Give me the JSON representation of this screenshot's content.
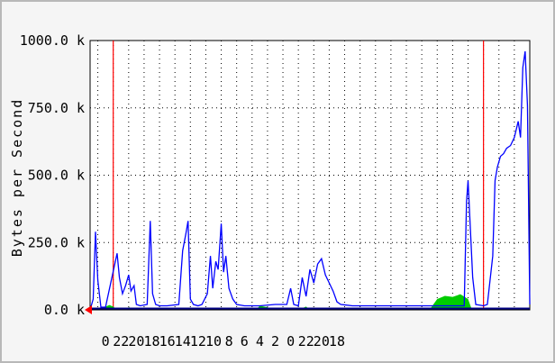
{
  "chart_data": {
    "type": "line",
    "title": "",
    "xlabel": "",
    "ylabel": "Bytes per Second",
    "ylim": [
      0,
      1000
    ],
    "y_ticks": [
      "0.0 k",
      "250.0 k",
      "500.0 k",
      "750.0 k",
      "1000.0 k"
    ],
    "y_tick_values": [
      0,
      250,
      500,
      750,
      1000
    ],
    "x_ticks": [
      "0",
      "22",
      "20",
      "18",
      "16",
      "14",
      "12",
      "10",
      "8",
      "6",
      "4",
      "2",
      "0",
      "22",
      "20",
      "18"
    ],
    "x_range": [
      -1,
      56
    ],
    "x_tick_positions": [
      2,
      6,
      10,
      14,
      18,
      22,
      26,
      30,
      34,
      38,
      42,
      46,
      50,
      54,
      58,
      62
    ],
    "day_markers": [
      2,
      50
    ],
    "grid": true,
    "colors": {
      "series_in": "#00cc00",
      "series_out": "#0000ff",
      "axis": "#000000",
      "day_marker": "#ff0000",
      "arrow": "#ff0000"
    },
    "series": [
      {
        "values": [
          [
            -1,
            0
          ],
          [
            1,
            0
          ],
          [
            1,
            12
          ],
          [
            1.5,
            18
          ],
          [
            2,
            12
          ],
          [
            2.5,
            0
          ],
          [
            4,
            0
          ],
          [
            4,
            10
          ],
          [
            5,
            0
          ],
          [
            20.5,
            0
          ],
          [
            21,
            15
          ],
          [
            22,
            10
          ],
          [
            22.5,
            0
          ],
          [
            26,
            0
          ],
          [
            27,
            12
          ],
          [
            27.5,
            0
          ],
          [
            43,
            0
          ],
          [
            44,
            40
          ],
          [
            45,
            52
          ],
          [
            46,
            48
          ],
          [
            47,
            58
          ],
          [
            48,
            40
          ],
          [
            48.5,
            0
          ],
          [
            56,
            0
          ]
        ]
      },
      {
        "values": [
          [
            -1,
            0
          ],
          [
            -0.6,
            40
          ],
          [
            -0.3,
            290
          ],
          [
            0,
            110
          ],
          [
            0.4,
            10
          ],
          [
            1,
            10
          ],
          [
            2.2,
            170
          ],
          [
            2.5,
            210
          ],
          [
            2.8,
            120
          ],
          [
            3.2,
            60
          ],
          [
            3.6,
            90
          ],
          [
            4,
            130
          ],
          [
            4.3,
            70
          ],
          [
            4.7,
            90
          ],
          [
            5,
            20
          ],
          [
            5.5,
            15
          ],
          [
            6.4,
            20
          ],
          [
            6.8,
            330
          ],
          [
            7.1,
            60
          ],
          [
            7.5,
            20
          ],
          [
            8,
            15
          ],
          [
            9,
            15
          ],
          [
            10.5,
            20
          ],
          [
            11,
            220
          ],
          [
            11.4,
            280
          ],
          [
            11.7,
            330
          ],
          [
            12,
            40
          ],
          [
            12.4,
            20
          ],
          [
            13,
            15
          ],
          [
            13.5,
            20
          ],
          [
            14.2,
            60
          ],
          [
            14.6,
            200
          ],
          [
            14.9,
            80
          ],
          [
            15.3,
            180
          ],
          [
            15.6,
            150
          ],
          [
            16,
            320
          ],
          [
            16.3,
            140
          ],
          [
            16.6,
            200
          ],
          [
            17,
            80
          ],
          [
            17.5,
            40
          ],
          [
            18,
            20
          ],
          [
            19,
            15
          ],
          [
            21,
            15
          ],
          [
            23,
            20
          ],
          [
            24.5,
            20
          ],
          [
            25,
            80
          ],
          [
            25.4,
            20
          ],
          [
            26,
            15
          ],
          [
            26.5,
            120
          ],
          [
            27,
            50
          ],
          [
            27.5,
            150
          ],
          [
            28,
            100
          ],
          [
            28.5,
            170
          ],
          [
            29,
            190
          ],
          [
            29.5,
            130
          ],
          [
            30,
            100
          ],
          [
            30.5,
            70
          ],
          [
            31,
            30
          ],
          [
            31.5,
            20
          ],
          [
            33,
            15
          ],
          [
            40,
            15
          ],
          [
            45,
            15
          ],
          [
            47.5,
            15
          ],
          [
            47.8,
            400
          ],
          [
            48,
            480
          ],
          [
            48.3,
            300
          ],
          [
            48.6,
            120
          ],
          [
            49,
            20
          ],
          [
            50,
            15
          ],
          [
            50.5,
            20
          ],
          [
            51.2,
            200
          ],
          [
            51.5,
            480
          ],
          [
            51.8,
            530
          ],
          [
            52.2,
            570
          ],
          [
            52.6,
            580
          ],
          [
            53,
            600
          ],
          [
            53.5,
            610
          ],
          [
            54,
            640
          ],
          [
            54.5,
            700
          ],
          [
            54.8,
            640
          ],
          [
            55.1,
            900
          ],
          [
            55.4,
            960
          ],
          [
            55.7,
            760
          ],
          [
            56,
            20
          ]
        ]
      }
    ]
  }
}
